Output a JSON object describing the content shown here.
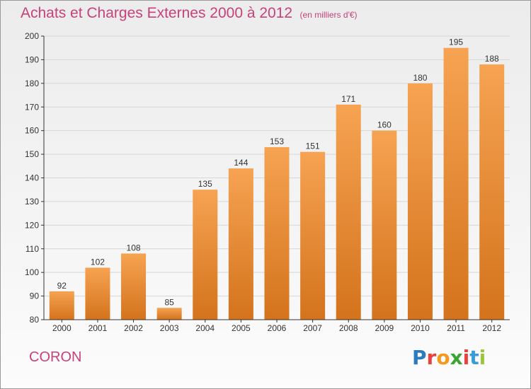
{
  "title": "Achats et Charges Externes 2000 à 2012",
  "unit": "(en milliers d'€)",
  "commune": "CORON",
  "logo": {
    "letters": [
      "P",
      "r",
      "o",
      "x",
      "i",
      "t",
      "i"
    ],
    "colors": [
      "#2b7bc0",
      "#e8423e",
      "#f39a1e",
      "#3aa535",
      "#e8423e",
      "#3a9bd9",
      "#9bc53d"
    ]
  },
  "colors": {
    "bar_top": "#f6a352",
    "bar_bottom": "#d4731c",
    "title": "#c7417a",
    "axis": "#333333",
    "grid": "#d6d6d6"
  },
  "chart_data": {
    "type": "bar",
    "categories": [
      "2000",
      "2001",
      "2002",
      "2003",
      "2004",
      "2005",
      "2006",
      "2007",
      "2008",
      "2009",
      "2010",
      "2011",
      "2012"
    ],
    "values": [
      92,
      102,
      108,
      85,
      135,
      144,
      153,
      151,
      171,
      160,
      180,
      195,
      188
    ],
    "ylim": [
      80,
      200
    ],
    "yticks": [
      80,
      90,
      100,
      110,
      120,
      130,
      140,
      150,
      160,
      170,
      180,
      190,
      200
    ],
    "grid": true,
    "title": "Achats et Charges Externes 2000 à 2012",
    "xlabel": "",
    "ylabel": ""
  }
}
